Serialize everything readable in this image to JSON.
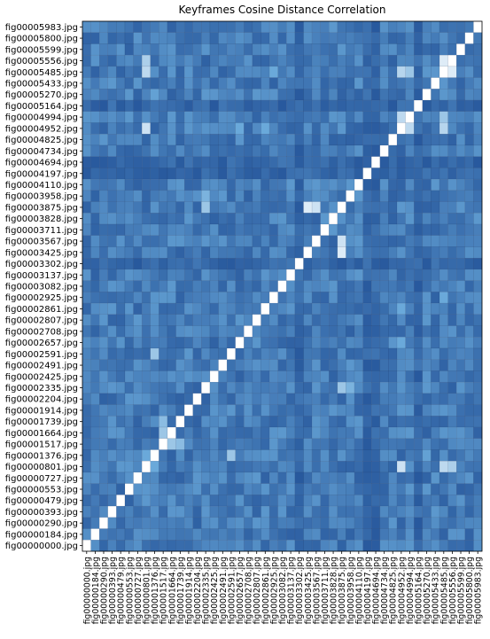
{
  "chart_data": {
    "type": "heatmap",
    "title": "Keyframes Cosine Distance Correlation",
    "xlabel": "",
    "ylabel": "",
    "colormap": [
      "#1f4e95",
      "#6aa9da",
      "#ffffff"
    ],
    "value_range": [
      0,
      1
    ],
    "diagonal_value": 1.0,
    "row_labels": [
      "fig00005983.jpg",
      "fig00005800.jpg",
      "fig00005599.jpg",
      "fig00005556.jpg",
      "fig00005485.jpg",
      "fig00005433.jpg",
      "fig00005270.jpg",
      "fig00005164.jpg",
      "fig00004994.jpg",
      "fig00004952.jpg",
      "fig00004825.jpg",
      "fig00004734.jpg",
      "fig00004694.jpg",
      "fig00004197.jpg",
      "fig00004110.jpg",
      "fig00003958.jpg",
      "fig00003875.jpg",
      "fig00003828.jpg",
      "fig00003711.jpg",
      "fig00003567.jpg",
      "fig00003425.jpg",
      "fig00003302.jpg",
      "fig00003137.jpg",
      "fig00003082.jpg",
      "fig00002925.jpg",
      "fig00002861.jpg",
      "fig00002807.jpg",
      "fig00002708.jpg",
      "fig00002657.jpg",
      "fig00002591.jpg",
      "fig00002491.jpg",
      "fig00002425.jpg",
      "fig00002335.jpg",
      "fig00002204.jpg",
      "fig00001914.jpg",
      "fig00001739.jpg",
      "fig00001664.jpg",
      "fig00001517.jpg",
      "fig00001376.jpg",
      "fig00000801.jpg",
      "fig00000727.jpg",
      "fig00000553.jpg",
      "fig00000479.jpg",
      "fig00000393.jpg",
      "fig00000290.jpg",
      "fig00000184.jpg",
      "fig00000000.jpg"
    ],
    "col_labels": [
      "fig00000000.jpg",
      "fig00000184.jpg",
      "fig00000290.jpg",
      "fig00000393.jpg",
      "fig00000479.jpg",
      "fig00000553.jpg",
      "fig00000727.jpg",
      "fig00000801.jpg",
      "fig00001376.jpg",
      "fig00001517.jpg",
      "fig00001664.jpg",
      "fig00001739.jpg",
      "fig00001914.jpg",
      "fig00002204.jpg",
      "fig00002335.jpg",
      "fig00002425.jpg",
      "fig00002491.jpg",
      "fig00002591.jpg",
      "fig00002657.jpg",
      "fig00002708.jpg",
      "fig00002807.jpg",
      "fig00002861.jpg",
      "fig00002925.jpg",
      "fig00003082.jpg",
      "fig00003137.jpg",
      "fig00003302.jpg",
      "fig00003425.jpg",
      "fig00003567.jpg",
      "fig00003711.jpg",
      "fig00003828.jpg",
      "fig00003875.jpg",
      "fig00003958.jpg",
      "fig00004110.jpg",
      "fig00004197.jpg",
      "fig00004694.jpg",
      "fig00004734.jpg",
      "fig00004825.jpg",
      "fig00004952.jpg",
      "fig00004994.jpg",
      "fig00005164.jpg",
      "fig00005270.jpg",
      "fig00005433.jpg",
      "fig00005485.jpg",
      "fig00005556.jpg",
      "fig00005599.jpg",
      "fig00005800.jpg",
      "fig00005983.jpg"
    ],
    "highlights": [
      {
        "a": "fig00000801.jpg",
        "b": "fig00004952.jpg",
        "value": 0.85
      },
      {
        "a": "fig00000801.jpg",
        "b": "fig00005485.jpg",
        "value": 0.8
      },
      {
        "a": "fig00000801.jpg",
        "b": "fig00005556.jpg",
        "value": 0.75
      },
      {
        "a": "fig00005485.jpg",
        "b": "fig00005556.jpg",
        "value": 0.9
      },
      {
        "a": "fig00004952.jpg",
        "b": "fig00004994.jpg",
        "value": 0.8
      },
      {
        "a": "fig00004952.jpg",
        "b": "fig00005485.jpg",
        "value": 0.78
      },
      {
        "a": "fig00004994.jpg",
        "b": "fig00005485.jpg",
        "value": 0.7
      },
      {
        "a": "fig00001517.jpg",
        "b": "fig00001664.jpg",
        "value": 0.7
      },
      {
        "a": "fig00001517.jpg",
        "b": "fig00001739.jpg",
        "value": 0.65
      },
      {
        "a": "fig00001376.jpg",
        "b": "fig00002591.jpg",
        "value": 0.7
      },
      {
        "a": "fig00003425.jpg",
        "b": "fig00003875.jpg",
        "value": 0.9
      },
      {
        "a": "fig00003567.jpg",
        "b": "fig00003875.jpg",
        "value": 0.85
      },
      {
        "a": "fig00002335.jpg",
        "b": "fig00003875.jpg",
        "value": 0.7
      },
      {
        "a": "fig00003958.jpg",
        "b": "fig00002335.jpg",
        "value": 0.6
      },
      {
        "a": "fig00000801.jpg",
        "b": "fig00001376.jpg",
        "value": 0.55
      },
      {
        "a": "fig00002657.jpg",
        "b": "fig00004952.jpg",
        "value": 0.55
      },
      {
        "a": "fig00002861.jpg",
        "b": "fig00004952.jpg",
        "value": 0.55
      },
      {
        "a": "fig00005270.jpg",
        "b": "fig00001376.jpg",
        "value": 0.5
      },
      {
        "a": "fig00002925.jpg",
        "b": "fig00005485.jpg",
        "value": 0.55
      }
    ],
    "dark_rows": [
      "fig00004197.jpg",
      "fig00004694.jpg",
      "fig00005164.jpg",
      "fig00003302.jpg"
    ],
    "grid": false
  }
}
